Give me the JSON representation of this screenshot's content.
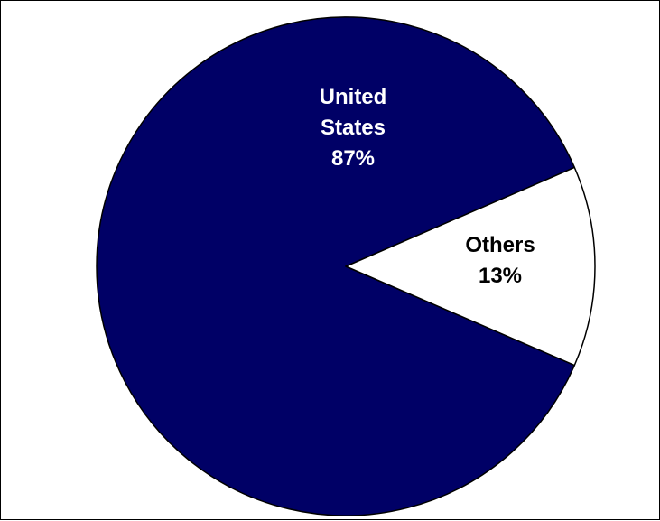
{
  "chart_data": {
    "type": "pie",
    "title": "",
    "slices": [
      {
        "name": "United States",
        "label_lines": [
          "United",
          "States"
        ],
        "value": 87,
        "value_label": "87%",
        "color": "#000066",
        "text_color": "#ffffff"
      },
      {
        "name": "Others",
        "label_lines": [
          "Others"
        ],
        "value": 13,
        "value_label": "13%",
        "color": "#ffffff",
        "text_color": "#000000"
      }
    ],
    "outline_color": "#000000",
    "legend": "none",
    "grid": false
  }
}
